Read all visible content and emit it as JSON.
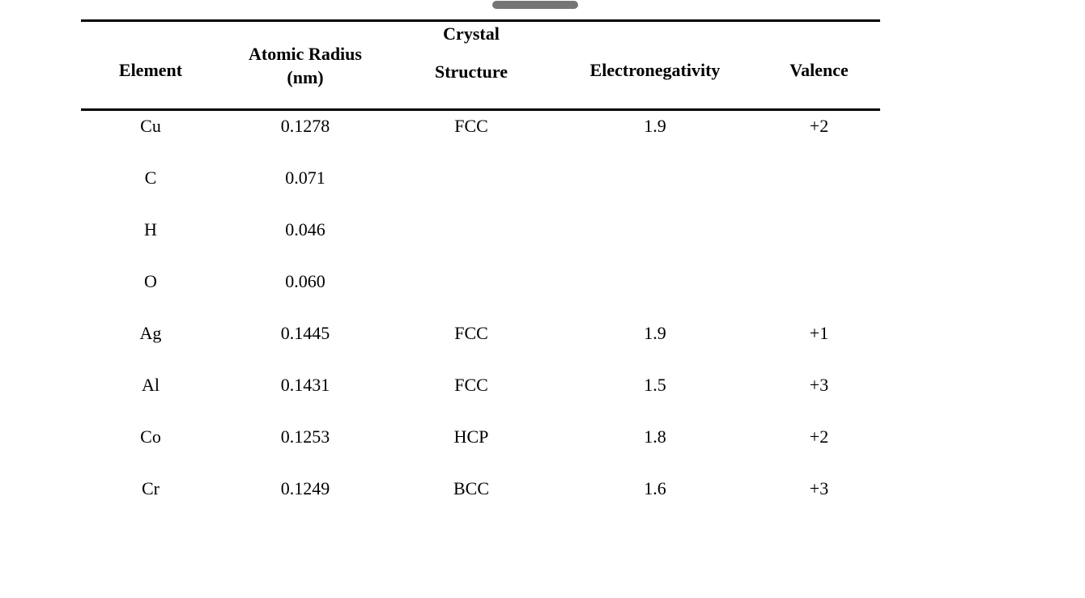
{
  "viewer": {
    "scrollbar_thumb_color": "#757575"
  },
  "table": {
    "rule_color": "#000000",
    "headers": [
      {
        "lines": [
          "Element"
        ]
      },
      {
        "lines": [
          "Atomic Radius",
          "(nm)"
        ]
      },
      {
        "lines": [
          "Crystal",
          "Structure"
        ]
      },
      {
        "lines": [
          "Electronegativity"
        ]
      },
      {
        "lines": [
          "Valence"
        ]
      }
    ],
    "column_keys": [
      "element",
      "atomic_radius_nm",
      "crystal_structure",
      "electronegativity",
      "valence"
    ],
    "rows": [
      [
        "Cu",
        "0.1278",
        "FCC",
        "1.9",
        "+2"
      ],
      [
        "C",
        "0.071",
        "",
        "",
        ""
      ],
      [
        "H",
        "0.046",
        "",
        "",
        ""
      ],
      [
        "O",
        "0.060",
        "",
        "",
        ""
      ],
      [
        "Ag",
        "0.1445",
        "FCC",
        "1.9",
        "+1"
      ],
      [
        "Al",
        "0.1431",
        "FCC",
        "1.5",
        "+3"
      ],
      [
        "Co",
        "0.1253",
        "HCP",
        "1.8",
        "+2"
      ],
      [
        "Cr",
        "0.1249",
        "BCC",
        "1.6",
        "+3"
      ]
    ]
  }
}
